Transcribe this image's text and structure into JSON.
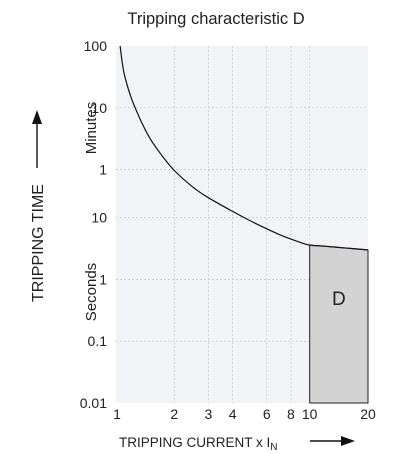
{
  "chart_data": {
    "type": "line",
    "title": "Tripping characteristic D",
    "xlabel": "TRIPPING CURRENT  x I",
    "xlabel_subscript": "N",
    "ylabel": "TRIPPING TIME",
    "x_scale": "log",
    "x_range": [
      1,
      20
    ],
    "x_ticks": [
      1,
      2,
      3,
      4,
      6,
      8,
      10,
      20
    ],
    "y_scale": "log",
    "y_units": [
      "Minutes",
      "Seconds"
    ],
    "y_ticks": [
      {
        "label": "100",
        "value_seconds": 6000
      },
      {
        "label": "10",
        "value_seconds": 600
      },
      {
        "label": "1",
        "value_seconds": 60
      },
      {
        "label": "10",
        "value_seconds": 10
      },
      {
        "label": "1",
        "value_seconds": 1
      },
      {
        "label": "0.1",
        "value_seconds": 0.1
      },
      {
        "label": "0.01",
        "value_seconds": 0.01
      }
    ],
    "grid": true,
    "colors": {
      "plot_area": "#f2f3f7",
      "grid": "#c8c8c8",
      "curve": "#111111",
      "band_fill": "#d3d3d3"
    },
    "series": [
      {
        "x": [
          1.05,
          1.1,
          1.2,
          1.35,
          1.5,
          1.7,
          2,
          2.5,
          3,
          4,
          5,
          6,
          7,
          8,
          9,
          10,
          12,
          15,
          18,
          20
        ],
        "y_seconds": [
          6000,
          2200,
          860,
          360,
          190,
          108,
          58,
          31,
          21,
          12.6,
          8.7,
          6.6,
          5.3,
          4.5,
          3.95,
          3.6,
          3.45,
          3.25,
          3.1,
          3.0
        ]
      }
    ],
    "annotations": [
      {
        "label": "D",
        "x_range": [
          10,
          20
        ],
        "y_lower_seconds": 0.01,
        "y_upper_seconds": [
          3.6,
          3.0
        ]
      }
    ]
  }
}
